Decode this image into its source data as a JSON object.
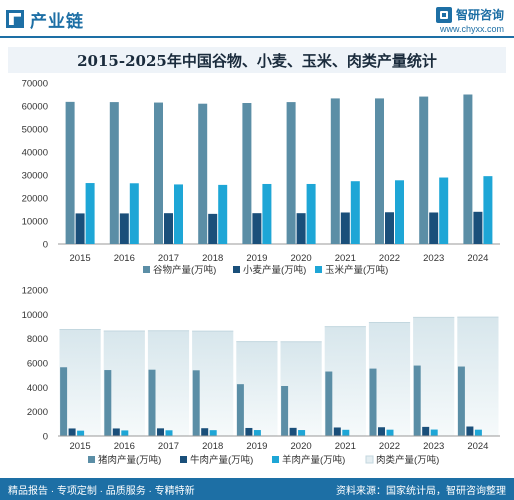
{
  "header": {
    "title": "产业链",
    "brand_name": "智研咨询",
    "brand_url": "www.chyxx.com"
  },
  "figure": {
    "title": "2015-2025年中国谷物、小麦、玉米、肉类产量统计"
  },
  "footer": {
    "tagline": "精品报告 · 专项定制 · 品质服务 · 专精特新",
    "source": "资料来源：国家统计局，智研咨询整理"
  },
  "watermark_text": "智研咨询",
  "colors": {
    "brand": "#1d6fa5",
    "grain": "#5b8ea6",
    "wheat": "#1a4f7a",
    "corn": "#1ea6d6",
    "meat": "#e4eef2",
    "pork": "#5b8ea6",
    "beef": "#1a4f7a",
    "mutton": "#1ea6d6"
  },
  "chart_data": [
    {
      "type": "bar",
      "categories": [
        "2015",
        "2016",
        "2017",
        "2018",
        "2019",
        "2020",
        "2021",
        "2022",
        "2023",
        "2024"
      ],
      "ylim": [
        0,
        70000
      ],
      "yticks": [
        0,
        10000,
        20000,
        30000,
        40000,
        50000,
        60000,
        70000
      ],
      "grid": false,
      "legend_position": "bottom",
      "series": [
        {
          "name": "谷物产量(万吨)",
          "values": [
            61800,
            61700,
            61500,
            61000,
            61300,
            61700,
            63300,
            63300,
            64100,
            65000
          ]
        },
        {
          "name": "小麦产量(万吨)",
          "values": [
            13300,
            13300,
            13400,
            13100,
            13400,
            13400,
            13700,
            13800,
            13700,
            14000
          ]
        },
        {
          "name": "玉米产量(万吨)",
          "values": [
            26500,
            26400,
            25900,
            25700,
            26100,
            26100,
            27300,
            27700,
            28900,
            29500
          ]
        }
      ]
    },
    {
      "type": "bar",
      "categories": [
        "2015",
        "2016",
        "2017",
        "2018",
        "2019",
        "2020",
        "2021",
        "2022",
        "2023",
        "2024"
      ],
      "ylim": [
        0,
        12000
      ],
      "yticks": [
        0,
        2000,
        4000,
        6000,
        8000,
        10000,
        12000
      ],
      "grid": false,
      "legend_position": "bottom",
      "series": [
        {
          "name": "肉类产量(万吨)",
          "values": [
            8750,
            8630,
            8650,
            8620,
            7760,
            7750,
            8990,
            9330,
            9750,
            9770
          ]
        },
        {
          "name": "猪肉产量(万吨)",
          "values": [
            5650,
            5420,
            5450,
            5400,
            4260,
            4110,
            5300,
            5540,
            5790,
            5710
          ]
        },
        {
          "name": "牛肉产量(万吨)",
          "values": [
            620,
            620,
            630,
            640,
            660,
            670,
            700,
            720,
            750,
            780
          ]
        },
        {
          "name": "羊肉产量(万吨)",
          "values": [
            440,
            460,
            470,
            480,
            490,
            490,
            510,
            520,
            530,
            520
          ]
        }
      ]
    }
  ]
}
